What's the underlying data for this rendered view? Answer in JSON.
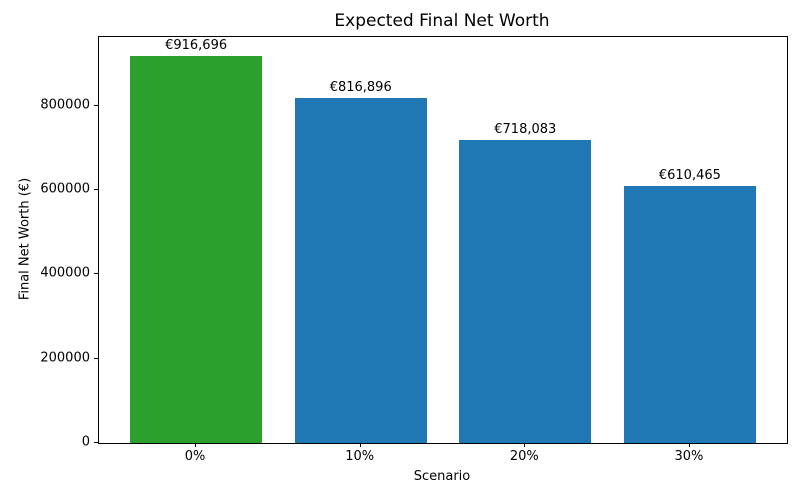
{
  "chart_data": {
    "type": "bar",
    "title": "Expected Final Net Worth",
    "xlabel": "Scenario",
    "ylabel": "Final Net Worth (€)",
    "categories": [
      "0%",
      "10%",
      "20%",
      "30%"
    ],
    "values": [
      916696,
      816896,
      718083,
      610465
    ],
    "bar_labels": [
      "€916,696",
      "€816,896",
      "€718,083",
      "€610,465"
    ],
    "bar_colors": [
      "#2ca02c",
      "#1f77b4",
      "#1f77b4",
      "#1f77b4"
    ],
    "yticks": [
      0,
      200000,
      400000,
      600000,
      800000
    ],
    "ylim": [
      0,
      962531
    ],
    "grid": false,
    "legend_position": "none"
  }
}
